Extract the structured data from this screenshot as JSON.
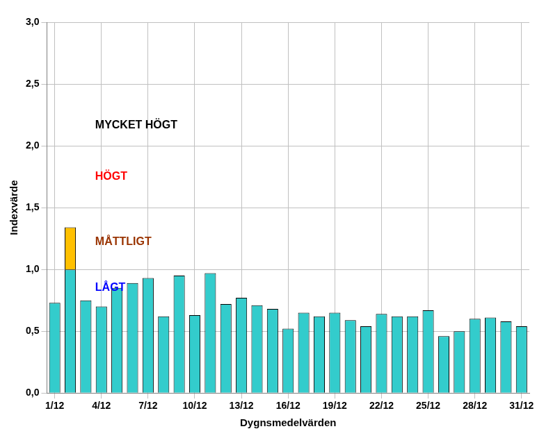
{
  "chart_data": {
    "type": "bar",
    "x_label": "Dygnsmedelvärden",
    "y_label": "Indexvärde",
    "categories": [
      "1/12",
      null,
      null,
      "4/12",
      null,
      null,
      "7/12",
      null,
      null,
      "10/12",
      null,
      null,
      "13/12",
      null,
      null,
      "16/12",
      null,
      null,
      "19/12",
      null,
      null,
      "22/12",
      null,
      null,
      "25/12",
      null,
      null,
      "28/12",
      null,
      null,
      "31/12"
    ],
    "series": [
      {
        "color": "#33cccc",
        "values": [
          0.73,
          1.0,
          0.75,
          0.7,
          0.85,
          0.89,
          0.93,
          0.62,
          0.95,
          0.63,
          0.97,
          0.72,
          0.77,
          0.71,
          0.68,
          0.52,
          0.65,
          0.62,
          0.65,
          0.59,
          0.54,
          0.64,
          0.62,
          0.62,
          0.67,
          0.46,
          0.5,
          0.6,
          0.61,
          0.58,
          0.54
        ]
      },
      {
        "color": "#ffc000",
        "values": [
          null,
          0.34,
          null,
          null,
          null,
          null,
          null,
          null,
          null,
          null,
          null,
          null,
          null,
          null,
          null,
          null,
          null,
          null,
          null,
          null,
          null,
          null,
          null,
          null,
          null,
          null,
          null,
          null,
          null,
          null,
          null
        ]
      }
    ],
    "stacked": true,
    "ylim": [
      0,
      3
    ],
    "yticks": [
      {
        "value": 0,
        "label": "0,0"
      },
      {
        "value": 0.5,
        "label": "0,5"
      },
      {
        "value": 1,
        "label": "1,0"
      },
      {
        "value": 1.5,
        "label": "1,5"
      },
      {
        "value": 2,
        "label": "2,0"
      },
      {
        "value": 2.5,
        "label": "2,5"
      },
      {
        "value": 3,
        "label": "3,0"
      }
    ],
    "grid": true,
    "annotations": [
      {
        "text": "MYCKET HÖGT",
        "color": "#000000"
      },
      {
        "text": "HÖGT",
        "color": "#ff0000"
      },
      {
        "text": "MÅTTLIGT",
        "color": "#993300"
      },
      {
        "text": "LÅGT",
        "color": "#0000ff"
      }
    ]
  }
}
